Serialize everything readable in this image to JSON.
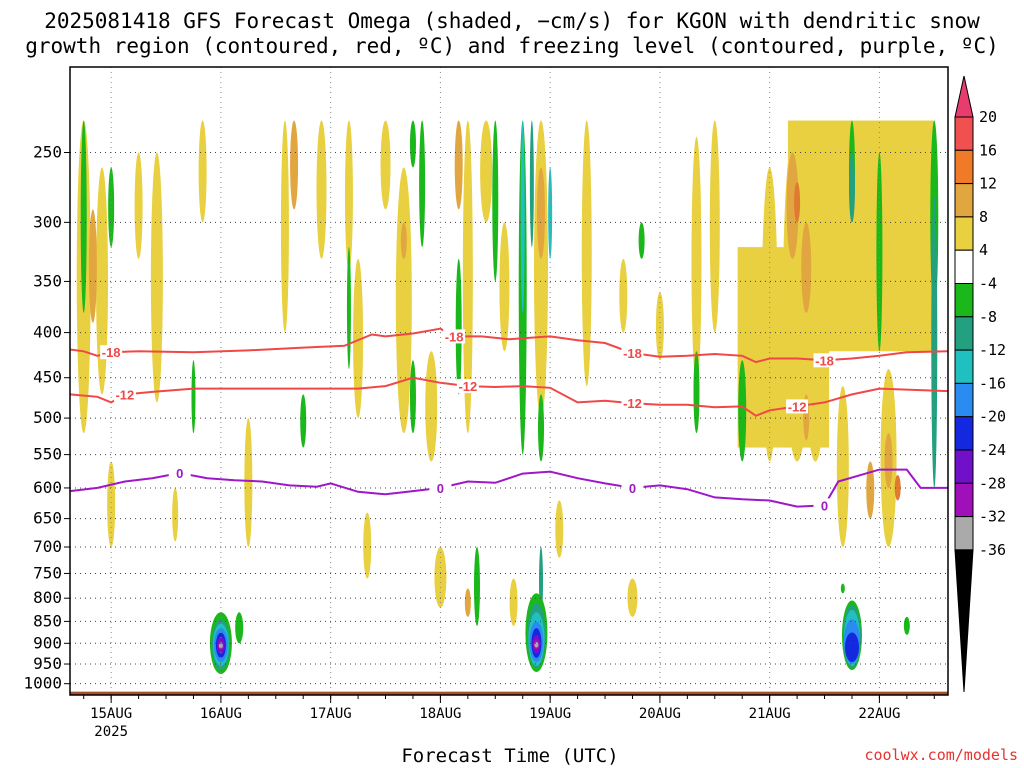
{
  "title_line1": "2025081418 GFS Forecast Omega (shaded, −cm/s) for KGON with dendritic snow",
  "title_line2": "growth region (contoured, red, ºC) and freezing level (contoured, purple, ºC)",
  "xlabel": "Forecast Time (UTC)",
  "credit": "coolwx.com/models",
  "year_label": "2025",
  "chart_data": {
    "type": "heatmap",
    "title": "2025081418 GFS Forecast Omega (shaded, −cm/s) for KGON with dendritic snow growth region (contoured, red, ºC) and freezing level (contoured, purple, ºC)",
    "xlabel": "Forecast Time (UTC)",
    "ylabel": "",
    "x_unit": "hours since 2025-08-14 18Z",
    "xlim": [
      -3,
      189
    ],
    "x_ticks": [
      {
        "label": "15AUG",
        "hour": 6
      },
      {
        "label": "16AUG",
        "hour": 30
      },
      {
        "label": "17AUG",
        "hour": 54
      },
      {
        "label": "18AUG",
        "hour": 78
      },
      {
        "label": "19AUG",
        "hour": 102
      },
      {
        "label": "20AUG",
        "hour": 126
      },
      {
        "label": "21AUG",
        "hour": 150
      },
      {
        "label": "22AUG",
        "hour": 174
      }
    ],
    "y_levels_hpa": [
      250,
      300,
      350,
      400,
      450,
      500,
      550,
      600,
      650,
      700,
      750,
      800,
      850,
      900,
      950,
      1000
    ],
    "y_scale": "log-pressure (inverted)",
    "ylim": [
      1030,
      200
    ],
    "grid": true,
    "colorbar": {
      "labels": [
        20,
        16,
        12,
        8,
        4,
        -4,
        -8,
        -12,
        -16,
        -20,
        -24,
        -28,
        -32,
        -36
      ],
      "colors": [
        "#e83c6e",
        "#f05050",
        "#f07a28",
        "#e2a640",
        "#e8d040",
        "#ffffff",
        "#1ab81a",
        "#22a080",
        "#20c0c0",
        "#2a8cf0",
        "#1428e0",
        "#7010c8",
        "#a010b8",
        "#aaaaaa",
        "#000000"
      ]
    },
    "contours": [
      {
        "label": "-18",
        "color": "#f04848",
        "points": [
          [
            -3,
            418
          ],
          [
            0,
            420
          ],
          [
            3,
            425
          ],
          [
            6,
            421
          ],
          [
            12,
            420
          ],
          [
            24,
            421
          ],
          [
            36,
            419
          ],
          [
            48,
            416
          ],
          [
            57,
            414
          ],
          [
            63,
            402
          ],
          [
            66,
            404
          ],
          [
            72,
            401
          ],
          [
            78,
            396
          ],
          [
            81,
            404
          ],
          [
            87,
            404
          ],
          [
            93,
            407
          ],
          [
            102,
            404
          ],
          [
            108,
            408
          ],
          [
            114,
            411
          ],
          [
            120,
            422
          ],
          [
            126,
            426
          ],
          [
            132,
            425
          ],
          [
            138,
            423
          ],
          [
            144,
            425
          ],
          [
            147,
            432
          ],
          [
            150,
            428
          ],
          [
            156,
            428
          ],
          [
            162,
            430
          ],
          [
            168,
            428
          ],
          [
            174,
            425
          ],
          [
            180,
            421
          ],
          [
            189,
            420
          ]
        ]
      },
      {
        "label": "-12",
        "color": "#f04848",
        "points": [
          [
            -3,
            470
          ],
          [
            3,
            473
          ],
          [
            6,
            480
          ],
          [
            9,
            470
          ],
          [
            15,
            467
          ],
          [
            24,
            463
          ],
          [
            36,
            463
          ],
          [
            48,
            463
          ],
          [
            60,
            463
          ],
          [
            66,
            460
          ],
          [
            72,
            450
          ],
          [
            78,
            456
          ],
          [
            84,
            460
          ],
          [
            90,
            461
          ],
          [
            96,
            460
          ],
          [
            102,
            462
          ],
          [
            108,
            480
          ],
          [
            114,
            478
          ],
          [
            120,
            481
          ],
          [
            126,
            483
          ],
          [
            132,
            483
          ],
          [
            138,
            486
          ],
          [
            144,
            485
          ],
          [
            147,
            497
          ],
          [
            150,
            490
          ],
          [
            156,
            485
          ],
          [
            162,
            480
          ],
          [
            168,
            470
          ],
          [
            174,
            463
          ],
          [
            189,
            466
          ]
        ]
      },
      {
        "label": "0",
        "color": "#9d18c8",
        "points": [
          [
            -3,
            605
          ],
          [
            3,
            600
          ],
          [
            9,
            590
          ],
          [
            15,
            585
          ],
          [
            21,
            577
          ],
          [
            27,
            585
          ],
          [
            33,
            588
          ],
          [
            39,
            590
          ],
          [
            45,
            596
          ],
          [
            51,
            598
          ],
          [
            54,
            593
          ],
          [
            60,
            606
          ],
          [
            66,
            610
          ],
          [
            72,
            605
          ],
          [
            78,
            600
          ],
          [
            84,
            590
          ],
          [
            90,
            592
          ],
          [
            96,
            578
          ],
          [
            102,
            575
          ],
          [
            108,
            585
          ],
          [
            114,
            593
          ],
          [
            120,
            600
          ],
          [
            126,
            596
          ],
          [
            132,
            602
          ],
          [
            138,
            615
          ],
          [
            144,
            618
          ],
          [
            150,
            620
          ],
          [
            156,
            630
          ],
          [
            162,
            628
          ],
          [
            165,
            590
          ],
          [
            174,
            572
          ],
          [
            180,
            572
          ],
          [
            183,
            600
          ],
          [
            189,
            600
          ]
        ]
      }
    ],
    "shaded_features": [
      {
        "level_range_hpa": [
          850,
          970
        ],
        "hour": 30,
        "omega_min": -32,
        "description": "strong ascent core"
      },
      {
        "level_range_hpa": [
          850,
          970
        ],
        "hour": 99,
        "omega_min": -32,
        "description": "strong ascent core"
      },
      {
        "level_range_hpa": [
          830,
          960
        ],
        "hour": 168,
        "omega_min": -24,
        "description": "ascent core"
      },
      {
        "level_range_hpa": [
          250,
          600
        ],
        "hour": 168,
        "omega_max": 16,
        "description": "subsidence maximum"
      }
    ]
  }
}
